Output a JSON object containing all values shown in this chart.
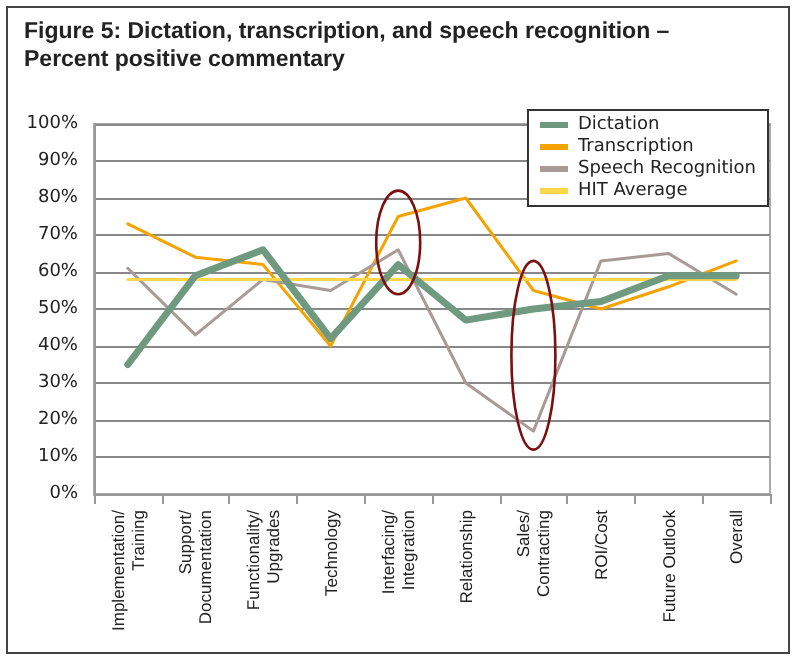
{
  "chart_data": {
    "type": "line",
    "title": "Figure 5: Dictation, transcription, and speech recognition – Percent positive commentary",
    "categories": [
      "Implementation/ Training",
      "Support/ Documentation",
      "Functionality/ Upgrades",
      "Technology",
      "Interfacing/ Integration",
      "Relationship",
      "Sales/ Contracting",
      "ROI/Cost",
      "Future Outlook",
      "Overall"
    ],
    "series": [
      {
        "name": "Dictation",
        "color": "#6f9a80",
        "values": [
          35,
          59,
          66,
          42,
          62,
          47,
          50,
          52,
          59,
          59
        ]
      },
      {
        "name": "Transcription",
        "color": "#f5a300",
        "values": [
          73,
          64,
          62,
          40,
          75,
          80,
          55,
          50,
          56,
          63
        ]
      },
      {
        "name": "Speech Recognition",
        "color": "#a89a96",
        "values": [
          61,
          43,
          58,
          55,
          66,
          30,
          17,
          63,
          65,
          54
        ]
      },
      {
        "name": "HIT Average",
        "color": "#ffd54a",
        "values": [
          58,
          58,
          58,
          58,
          58,
          58,
          58,
          58,
          58,
          58
        ]
      }
    ],
    "ylim": [
      0,
      100
    ],
    "yticks": [
      {
        "value": 0,
        "label": "0%"
      },
      {
        "value": 10,
        "label": "10%"
      },
      {
        "value": 20,
        "label": "20%"
      },
      {
        "value": 30,
        "label": "30%"
      },
      {
        "value": 40,
        "label": "40%"
      },
      {
        "value": 50,
        "label": "50%"
      },
      {
        "value": 60,
        "label": "60%"
      },
      {
        "value": 70,
        "label": "70%"
      },
      {
        "value": 80,
        "label": "80%"
      },
      {
        "value": 90,
        "label": "90%"
      },
      {
        "value": 100,
        "label": "100%"
      }
    ],
    "grid": "y",
    "legend": "top right",
    "marker": "none",
    "line_style": "solid"
  }
}
